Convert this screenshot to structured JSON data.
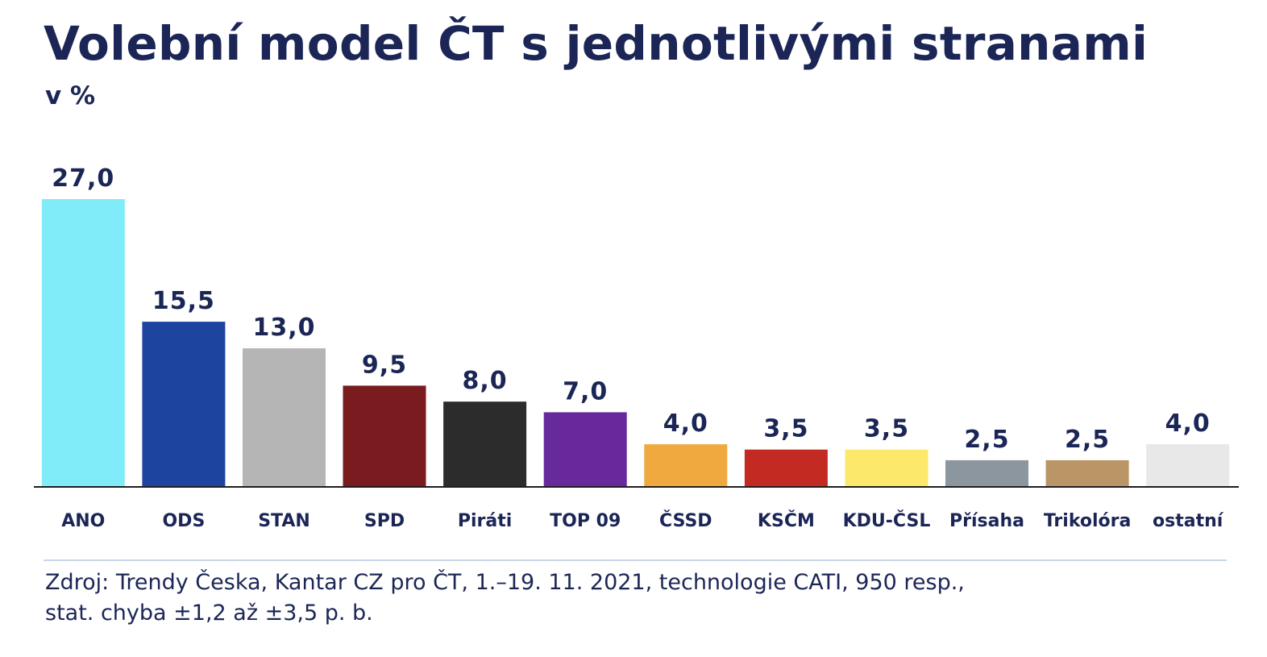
{
  "header": {
    "title": "Volební model ČT s jednotlivými stranami",
    "subtitle": "v %"
  },
  "footer": {
    "source_line1": "Zdroj: Trendy Česka, Kantar CZ pro ČT, 1.–19. 11. 2021, technologie CATI, 950 resp.,",
    "source_line2": "stat. chyba ±1,2 až ±3,5 p. b."
  },
  "chart_data": {
    "type": "bar",
    "title": "Volební model ČT s jednotlivými stranami",
    "subtitle": "v %",
    "xlabel": "",
    "ylabel": "",
    "ylim": [
      0,
      27
    ],
    "grid": false,
    "legend": "none",
    "categories": [
      "ANO",
      "ODS",
      "STAN",
      "SPD",
      "Piráti",
      "TOP 09",
      "ČSSD",
      "KSČM",
      "KDU-ČSL",
      "Přísaha",
      "Trikolóra",
      "ostatní"
    ],
    "values": [
      27.0,
      15.5,
      13.0,
      9.5,
      8.0,
      7.0,
      4.0,
      3.5,
      3.5,
      2.5,
      2.5,
      4.0
    ],
    "value_labels": [
      "27,0",
      "15,5",
      "13,0",
      "9,5",
      "8,0",
      "7,0",
      "4,0",
      "3,5",
      "3,5",
      "2,5",
      "2,5",
      "4,0"
    ],
    "colors": [
      "#80ebf9",
      "#1d45a0",
      "#b5b5b5",
      "#7a1b20",
      "#2c2c2c",
      "#67299c",
      "#f0a93e",
      "#c32a22",
      "#fce86a",
      "#8b969e",
      "#ba9565",
      "#e8e8e8"
    ]
  }
}
